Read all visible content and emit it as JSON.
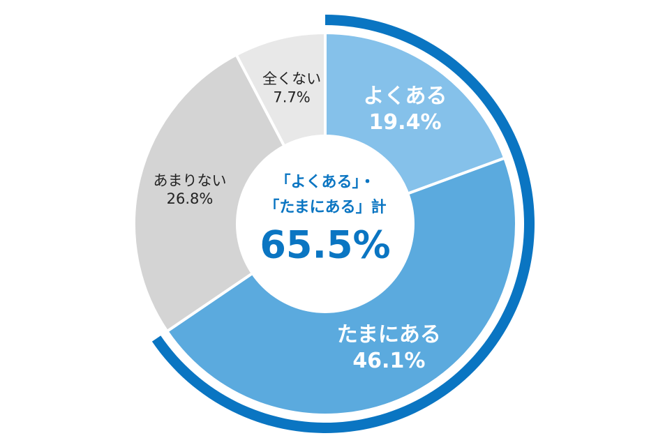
{
  "chart_data": {
    "type": "donut",
    "categories": [
      "よくある",
      "たまにある",
      "あまりない",
      "全くない"
    ],
    "values": [
      19.4,
      46.1,
      26.8,
      7.7
    ],
    "value_labels": [
      "19.4%",
      "46.1%",
      "26.8%",
      "7.7%"
    ],
    "colors": [
      "#85c1ea",
      "#5baade",
      "#d4d4d4",
      "#e8e8e8"
    ],
    "label_colors": [
      "#ffffff",
      "#ffffff",
      "#222222",
      "#222222"
    ],
    "center_label": [
      "「よくある」・",
      "「たまにある」計"
    ],
    "center_value": {
      "value": 65.5,
      "label": "65.5%"
    },
    "highlight_color": "#0a75c2"
  }
}
